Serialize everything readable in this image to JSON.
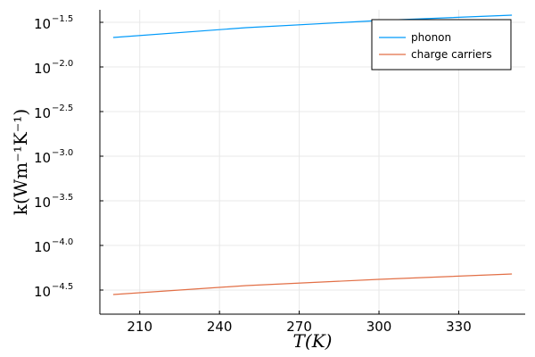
{
  "chart_data": {
    "type": "line",
    "title": "",
    "xlabel": "T(K)",
    "ylabel": "k(Wm⁻¹K⁻¹)",
    "xlim": [
      195,
      355
    ],
    "ylim": [
      -4.77,
      -1.36
    ],
    "y_scale": "log10",
    "x_ticks": [
      210,
      240,
      270,
      300,
      330
    ],
    "y_ticks": [
      {
        "label_base": "10",
        "label_exp": "−1.5",
        "value": -1.5
      },
      {
        "label_base": "10",
        "label_exp": "−2.0",
        "value": -2.0
      },
      {
        "label_base": "10",
        "label_exp": "−2.5",
        "value": -2.5
      },
      {
        "label_base": "10",
        "label_exp": "−3.0",
        "value": -3.0
      },
      {
        "label_base": "10",
        "label_exp": "−3.5",
        "value": -3.5
      },
      {
        "label_base": "10",
        "label_exp": "−4.0",
        "value": -4.0
      },
      {
        "label_base": "10",
        "label_exp": "−4.5",
        "value": -4.5
      }
    ],
    "grid": true,
    "legend_position": "top-right",
    "series": [
      {
        "name": "phonon",
        "color": "#009AFA",
        "x": [
          200,
          250,
          300,
          350
        ],
        "log10_y": [
          -1.67,
          -1.56,
          -1.48,
          -1.42
        ]
      },
      {
        "name": "charge carriers",
        "color": "#E26F46",
        "x": [
          200,
          250,
          300,
          350
        ],
        "log10_y": [
          -4.55,
          -4.45,
          -4.38,
          -4.32
        ]
      }
    ]
  }
}
